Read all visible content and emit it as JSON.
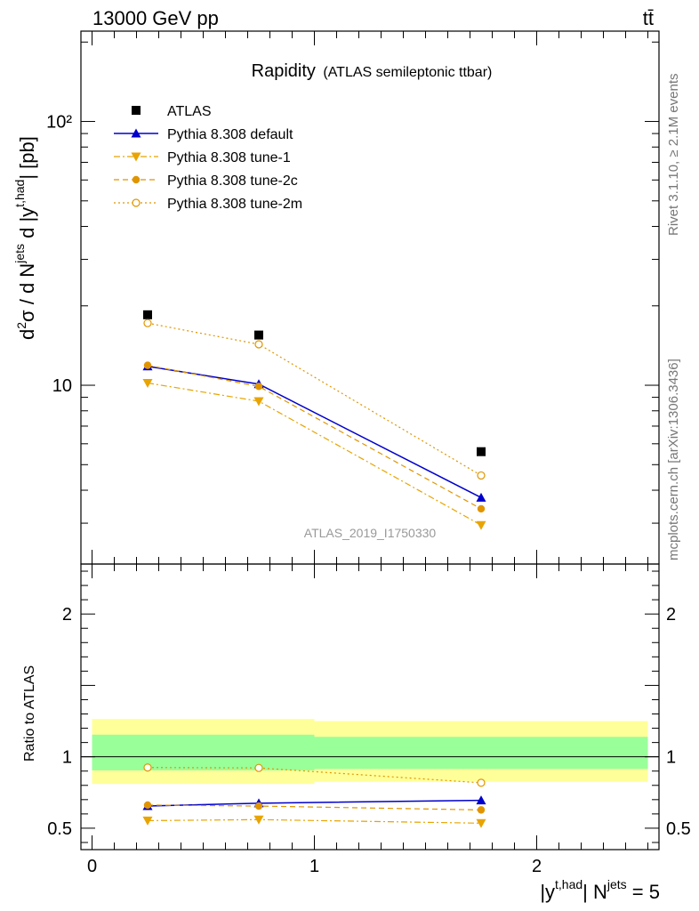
{
  "header": {
    "left_label": "13000 GeV pp",
    "right_label": "tt̄"
  },
  "side_labels": {
    "rivet": "Rivet 3.1.10, ≥ 2.1M events",
    "mcplots": "mcplots.cern.ch [arXiv:1306.3436]"
  },
  "chart_data": {
    "type": "line",
    "title": "Rapidity",
    "subtitle": "(ATLAS semileptonic ttbar)",
    "watermark": "ATLAS_2019_I1750330",
    "ylabel_main": "d²σ / d N^jets d |y^t,had| [pb]",
    "ylabel_ratio": "Ratio to ATLAS",
    "xlabel": "|y^t,had| N^jets = 5",
    "x": [
      0.25,
      0.75,
      1.75
    ],
    "x_bins": [
      [
        0,
        0.5
      ],
      [
        0.5,
        1.0
      ],
      [
        1.0,
        2.5
      ]
    ],
    "xlim": [
      -0.05,
      2.55
    ],
    "x_ticks": [
      "0",
      "1",
      "2"
    ],
    "main_ylim": [
      2.1,
      220
    ],
    "main_yscale": "log",
    "main_y_ticks": [
      "10",
      "10²"
    ],
    "ratio_ylim": [
      0.35,
      2.35
    ],
    "ratio_y_ticks": [
      "0.5",
      "1",
      "2"
    ],
    "legend_position": "top-left",
    "series": [
      {
        "name": "ATLAS",
        "values": [
          18.5,
          15.5,
          5.6
        ],
        "color": "#000000",
        "marker": "square",
        "line": "none"
      },
      {
        "name": "Pythia 8.308 default",
        "values": [
          11.8,
          10.1,
          3.75
        ],
        "color": "#0000cc",
        "marker": "triangle-up",
        "line": "solid"
      },
      {
        "name": "Pythia 8.308 tune-1",
        "values": [
          10.2,
          8.7,
          2.95
        ],
        "color": "#e8a400",
        "marker": "triangle-down",
        "line": "dashdot"
      },
      {
        "name": "Pythia 8.308 tune-2c",
        "values": [
          11.9,
          9.9,
          3.4
        ],
        "color": "#e09500",
        "marker": "circle",
        "line": "dashed"
      },
      {
        "name": "Pythia 8.308 tune-2m",
        "values": [
          17.2,
          14.3,
          4.55
        ],
        "color": "#e09500",
        "marker": "open-circle",
        "line": "dotted"
      }
    ],
    "ratio_series": [
      {
        "name": "Pythia 8.308 default",
        "values": [
          0.655,
          0.675,
          0.695
        ]
      },
      {
        "name": "Pythia 8.308 tune-1",
        "values": [
          0.553,
          0.56,
          0.535
        ]
      },
      {
        "name": "Pythia 8.308 tune-2c",
        "values": [
          0.662,
          0.655,
          0.628
        ]
      },
      {
        "name": "Pythia 8.308 tune-2m",
        "values": [
          0.925,
          0.922,
          0.818
        ]
      }
    ],
    "ratio_bands": [
      {
        "x_range": [
          0,
          1.0
        ],
        "inner": [
          0.905,
          1.155
        ],
        "outer": [
          0.81,
          1.265
        ]
      },
      {
        "x_range": [
          1.0,
          2.5
        ],
        "inner": [
          0.915,
          1.14
        ],
        "outer": [
          0.825,
          1.25
        ]
      }
    ],
    "band_colors": {
      "inner": "#99ff99",
      "outer": "#ffff99"
    }
  }
}
